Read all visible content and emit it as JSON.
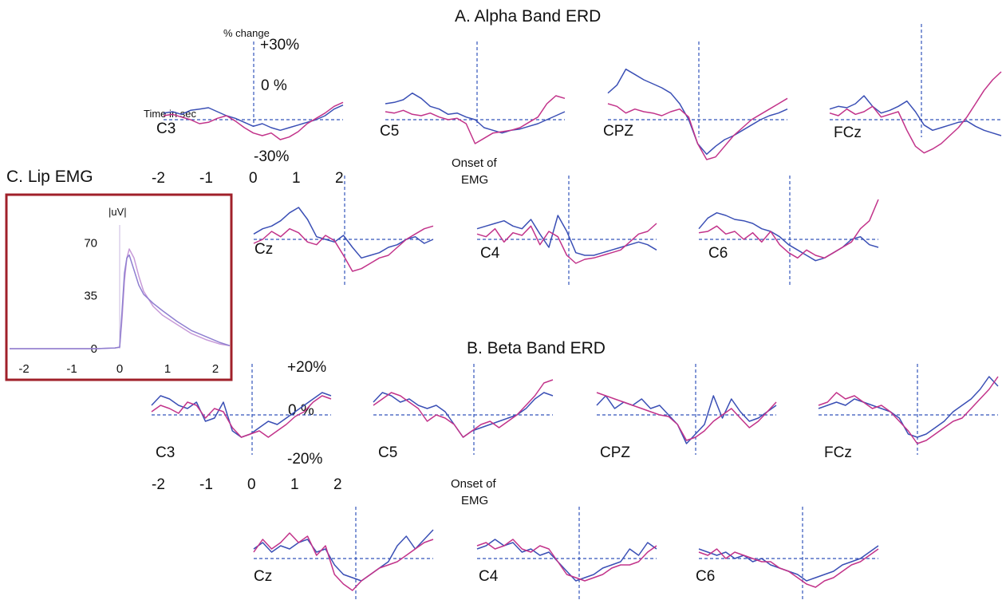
{
  "colors": {
    "series1": "#3a4fb5",
    "series2": "#c2338a",
    "axis": "#3355bb",
    "emg_box": "#a0202a",
    "emg1": "#c79ad8",
    "emg2": "#8f7fd0"
  },
  "sections": {
    "alpha_title": "A. Alpha Band ERD",
    "beta_title": "B. Beta Band ERD",
    "emg_title": "C. Lip EMG"
  },
  "alpha_axis": {
    "percent_label": "% change",
    "top": "+30%",
    "zero": "0 %",
    "bottom": "-30%",
    "time_label": "Time in sec",
    "ticks": [
      "-2",
      "-1",
      "0",
      "1",
      "2"
    ],
    "onset": [
      "Onset of",
      "EMG"
    ]
  },
  "beta_axis": {
    "top": "+20%",
    "zero": "0 %",
    "bottom": "-20%",
    "ticks": [
      "-2",
      "-1",
      "0",
      "1",
      "2"
    ],
    "onset": [
      "Onset of",
      "EMG"
    ]
  },
  "emg": {
    "unit": "|uV|",
    "yticks": [
      "70",
      "35",
      "0"
    ],
    "xticks": [
      "-2",
      "-1",
      "0",
      "1",
      "2"
    ]
  },
  "chart_data": [
    {
      "type": "line",
      "title": "A. Alpha Band ERD",
      "ylabel": "% change",
      "xlabel": "Time in sec",
      "xlim": [
        -2,
        2
      ],
      "ylim": [
        -30,
        30
      ],
      "panels": [
        {
          "name": "C3",
          "s1": [
            5,
            6,
            4,
            7,
            8,
            9,
            6,
            3,
            1,
            -2,
            -5,
            -3,
            -6,
            -8,
            -6,
            -4,
            -2,
            0,
            3,
            8,
            11
          ],
          "s2": [
            3,
            4,
            2,
            0,
            -3,
            -2,
            1,
            3,
            -1,
            -6,
            -10,
            -12,
            -10,
            -15,
            -13,
            -9,
            -3,
            1,
            5,
            10,
            13
          ]
        },
        {
          "name": "C5",
          "s1": [
            12,
            13,
            15,
            20,
            16,
            10,
            8,
            4,
            5,
            2,
            0,
            -6,
            -8,
            -10,
            -8,
            -7,
            -5,
            -3,
            0,
            3,
            6
          ],
          "s2": [
            6,
            5,
            7,
            4,
            3,
            5,
            2,
            0,
            1,
            -3,
            -18,
            -14,
            -10,
            -9,
            -8,
            -6,
            -2,
            2,
            12,
            18,
            16
          ]
        },
        {
          "name": "CPZ",
          "s1": [
            20,
            26,
            38,
            34,
            30,
            27,
            24,
            20,
            12,
            0,
            -18,
            -26,
            -20,
            -15,
            -12,
            -8,
            -4,
            0,
            3,
            5,
            8
          ],
          "s2": [
            12,
            10,
            5,
            8,
            6,
            5,
            3,
            6,
            8,
            2,
            -18,
            -30,
            -28,
            -20,
            -12,
            -6,
            0,
            4,
            8,
            12,
            16
          ]
        },
        {
          "name": "FCz",
          "s1": [
            8,
            10,
            9,
            12,
            18,
            10,
            5,
            7,
            10,
            14,
            6,
            -4,
            -8,
            -6,
            -4,
            -2,
            -1,
            -5,
            -8,
            -10,
            -12
          ],
          "s2": [
            5,
            3,
            8,
            4,
            6,
            10,
            2,
            4,
            6,
            -8,
            -20,
            -25,
            -22,
            -18,
            -12,
            -6,
            2,
            12,
            22,
            30,
            36
          ]
        }
      ]
    },
    {
      "type": "line",
      "title": "A. Alpha Band ERD (row 2)",
      "xlim": [
        -2,
        2
      ],
      "ylim": [
        -30,
        30
      ],
      "panels": [
        {
          "name": "Cz",
          "s1": [
            4,
            8,
            10,
            14,
            20,
            24,
            15,
            2,
            0,
            -2,
            3,
            -6,
            -14,
            -12,
            -10,
            -6,
            -4,
            0,
            2,
            -3,
            0
          ],
          "s2": [
            -3,
            0,
            6,
            2,
            8,
            5,
            -2,
            -4,
            3,
            -1,
            -12,
            -24,
            -22,
            -18,
            -14,
            -12,
            -6,
            0,
            4,
            8,
            10
          ],
          "emg_onset_label": true
        },
        {
          "name": "C4",
          "s1": [
            8,
            10,
            12,
            14,
            10,
            8,
            15,
            4,
            -6,
            18,
            6,
            -10,
            -12,
            -12,
            -10,
            -8,
            -6,
            -4,
            -2,
            -4,
            -8
          ],
          "s2": [
            4,
            2,
            8,
            -2,
            5,
            3,
            10,
            -4,
            6,
            2,
            -12,
            -18,
            -15,
            -14,
            -12,
            -10,
            -8,
            -2,
            4,
            6,
            12
          ]
        },
        {
          "name": "C6",
          "s1": [
            8,
            16,
            20,
            18,
            15,
            14,
            12,
            8,
            6,
            2,
            -4,
            -8,
            -12,
            -16,
            -14,
            -10,
            -6,
            0,
            2,
            -4,
            -6
          ],
          "s2": [
            5,
            6,
            10,
            4,
            6,
            0,
            5,
            -2,
            6,
            -4,
            -10,
            -14,
            -8,
            -12,
            -14,
            -10,
            -6,
            -2,
            8,
            14,
            30
          ]
        }
      ]
    },
    {
      "type": "line",
      "title": "B. Beta Band ERD",
      "ylabel": "% change",
      "xlim": [
        -2,
        2
      ],
      "ylim": [
        -20,
        20
      ],
      "panels": [
        {
          "name": "C3",
          "s1": [
            6,
            12,
            10,
            6,
            4,
            8,
            -4,
            -2,
            8,
            -10,
            -14,
            -12,
            -8,
            -4,
            -6,
            -2,
            2,
            6,
            10,
            14,
            12
          ],
          "s2": [
            2,
            6,
            4,
            1,
            8,
            6,
            -2,
            4,
            2,
            -8,
            -14,
            -12,
            -10,
            -14,
            -10,
            -6,
            -1,
            2,
            8,
            12,
            10
          ]
        },
        {
          "name": "C5",
          "s1": [
            8,
            14,
            12,
            8,
            10,
            6,
            4,
            6,
            2,
            -6,
            -14,
            -10,
            -8,
            -6,
            -4,
            -2,
            0,
            4,
            10,
            14,
            12
          ],
          "s2": [
            6,
            10,
            14,
            12,
            8,
            4,
            -4,
            0,
            -2,
            -6,
            -14,
            -10,
            -6,
            -4,
            -8,
            -4,
            0,
            6,
            12,
            20,
            22
          ]
        },
        {
          "name": "CPZ",
          "s1": [
            6,
            12,
            4,
            8,
            6,
            10,
            4,
            6,
            0,
            -6,
            -18,
            -12,
            -6,
            12,
            -2,
            10,
            2,
            -4,
            -2,
            2,
            6
          ],
          "s2": [
            14,
            12,
            10,
            8,
            6,
            4,
            2,
            0,
            -1,
            -6,
            -16,
            -14,
            -10,
            -4,
            0,
            4,
            -2,
            -8,
            -4,
            2,
            8
          ]
        },
        {
          "name": "FCz",
          "s1": [
            4,
            6,
            8,
            6,
            10,
            8,
            6,
            4,
            2,
            -2,
            -12,
            -14,
            -12,
            -8,
            -4,
            2,
            6,
            10,
            16,
            24,
            18
          ],
          "s2": [
            6,
            8,
            14,
            10,
            12,
            8,
            4,
            6,
            2,
            -4,
            -10,
            -18,
            -16,
            -12,
            -8,
            -4,
            -2,
            4,
            10,
            16,
            24
          ]
        }
      ]
    },
    {
      "type": "line",
      "title": "B. Beta Band ERD (row 2)",
      "xlim": [
        -2,
        2
      ],
      "ylim": [
        -20,
        20
      ],
      "panels": [
        {
          "name": "Cz",
          "s1": [
            6,
            10,
            4,
            8,
            6,
            10,
            12,
            4,
            6,
            -4,
            -10,
            -12,
            -14,
            -10,
            -6,
            -2,
            8,
            14,
            6,
            12,
            18
          ],
          "s2": [
            4,
            12,
            6,
            10,
            16,
            10,
            14,
            2,
            8,
            -10,
            -16,
            -20,
            -14,
            -10,
            -6,
            -4,
            -2,
            2,
            6,
            10,
            12
          ]
        },
        {
          "name": "C4",
          "s1": [
            6,
            8,
            12,
            8,
            10,
            4,
            6,
            2,
            4,
            -2,
            -8,
            -14,
            -12,
            -10,
            -6,
            -4,
            -2,
            6,
            2,
            10,
            6
          ],
          "s2": [
            8,
            10,
            6,
            8,
            12,
            6,
            4,
            8,
            6,
            -2,
            -10,
            -12,
            -14,
            -12,
            -10,
            -6,
            -4,
            -4,
            -2,
            4,
            8
          ]
        },
        {
          "name": "C6",
          "s1": [
            6,
            4,
            2,
            4,
            0,
            2,
            -2,
            0,
            -4,
            -6,
            -8,
            -10,
            -14,
            -12,
            -10,
            -8,
            -4,
            -2,
            0,
            4,
            8
          ],
          "s2": [
            4,
            2,
            6,
            0,
            4,
            2,
            0,
            -2,
            -2,
            -6,
            -8,
            -12,
            -16,
            -18,
            -14,
            -12,
            -8,
            -4,
            -2,
            2,
            6
          ]
        }
      ]
    },
    {
      "type": "line",
      "title": "C. Lip EMG",
      "ylabel": "|uV|",
      "xlim": [
        -2.3,
        2.3
      ],
      "ylim": [
        0,
        85
      ],
      "x": [
        -2.3,
        -1.5,
        -1.0,
        -0.5,
        -0.1,
        0.0,
        0.05,
        0.1,
        0.15,
        0.2,
        0.3,
        0.4,
        0.5,
        0.7,
        0.9,
        1.2,
        1.5,
        1.8,
        2.1,
        2.3
      ],
      "series": [
        {
          "name": "",
          "values": [
            0,
            0,
            0,
            0,
            0.5,
            1,
            20,
            45,
            60,
            66,
            60,
            48,
            38,
            28,
            22,
            16,
            10,
            6,
            3,
            2
          ]
        },
        {
          "name": "",
          "values": [
            0,
            0,
            0,
            0,
            0.5,
            1,
            25,
            50,
            60,
            62,
            52,
            42,
            36,
            30,
            25,
            18,
            12,
            8,
            4,
            2
          ]
        }
      ]
    }
  ]
}
